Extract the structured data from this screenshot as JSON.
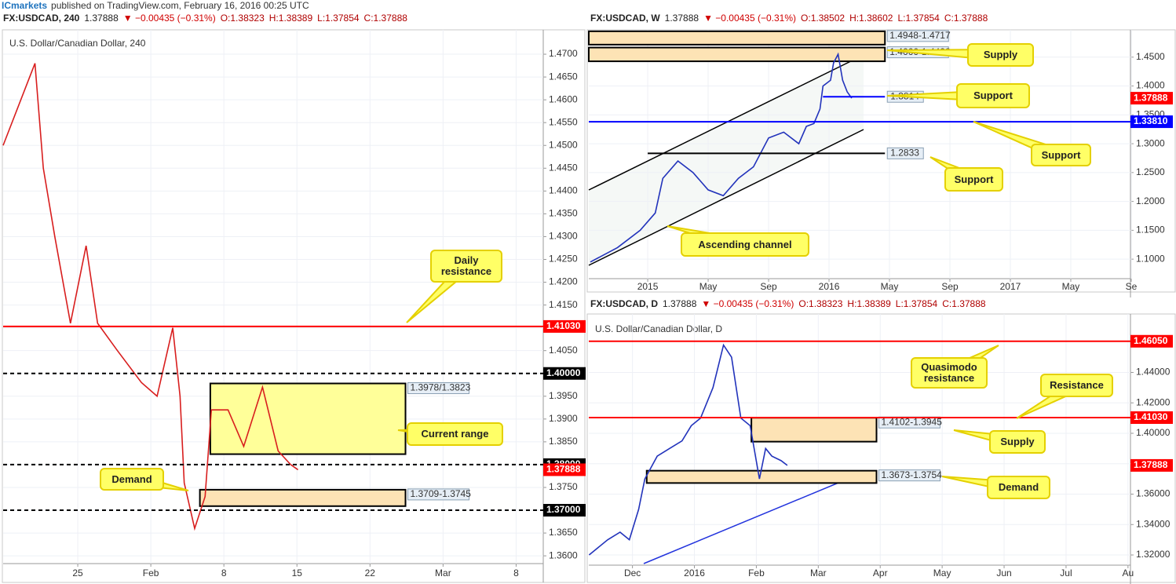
{
  "header": {
    "brand": "ICmarkets",
    "text": "published on TradingView.com, February 16, 2016 00:25 UTC"
  },
  "chart_data": [
    {
      "type": "line",
      "title": "U.S. Dollar/Canadian Dollar, 240",
      "info": {
        "symbol": "FX:USDCAD, 240",
        "price": "1.37888",
        "change": "▼ −0.00435 (−0.31%)",
        "open": "O:1.38323",
        "high": "H:1.38389",
        "low": "L:1.37854",
        "close": "C:1.37888"
      },
      "x": [
        -0.15,
        2.9,
        3.7,
        4.8,
        6.3,
        7.8,
        8.9,
        10.8,
        13.1,
        14.6,
        16.1,
        16.8,
        17.2,
        18.2,
        19.2,
        19.8,
        21.4,
        22.9,
        24.7,
        26.2,
        27.4,
        28.1
      ],
      "values": [
        1.45,
        1.468,
        1.445,
        1.43,
        1.411,
        1.428,
        1.411,
        1.405,
        1.398,
        1.395,
        1.41,
        1.395,
        1.376,
        1.366,
        1.373,
        1.392,
        1.392,
        1.384,
        1.397,
        1.383,
        1.38,
        1.37888
      ],
      "color": "#d81e1e",
      "grid": true,
      "xlim": [
        -0.15,
        51.6
      ],
      "ylim": [
        1.3583,
        1.475
      ],
      "xticks": [
        {
          "value": 7,
          "label": "25"
        },
        {
          "value": 14,
          "label": "Feb"
        },
        {
          "value": 21,
          "label": "8"
        },
        {
          "value": 28,
          "label": "15"
        },
        {
          "value": 35,
          "label": "22"
        },
        {
          "value": 42,
          "label": "Mar"
        },
        {
          "value": 49,
          "label": "8"
        }
      ],
      "yticks": [
        {
          "value": 1.36,
          "label": "1.3600"
        },
        {
          "value": 1.365,
          "label": "1.3650"
        },
        {
          "value": 1.37,
          "label": "1.3700"
        },
        {
          "value": 1.375,
          "label": "1.3750"
        },
        {
          "value": 1.38,
          "label": "1.3800"
        },
        {
          "value": 1.385,
          "label": "1.3850"
        },
        {
          "value": 1.39,
          "label": "1.3900"
        },
        {
          "value": 1.395,
          "label": "1.3950"
        },
        {
          "value": 1.4,
          "label": "1.4000"
        },
        {
          "value": 1.405,
          "label": "1.4050"
        },
        {
          "value": 1.41,
          "label": "1.4100"
        },
        {
          "value": 1.415,
          "label": "1.4150"
        },
        {
          "value": 1.42,
          "label": "1.4200"
        },
        {
          "value": 1.425,
          "label": "1.4250"
        },
        {
          "value": 1.43,
          "label": "1.4300"
        },
        {
          "value": 1.435,
          "label": "1.4350"
        },
        {
          "value": 1.44,
          "label": "1.4400"
        },
        {
          "value": 1.445,
          "label": "1.4450"
        },
        {
          "value": 1.45,
          "label": "1.4500"
        },
        {
          "value": 1.455,
          "label": "1.4550"
        },
        {
          "value": 1.46,
          "label": "1.4600"
        },
        {
          "value": 1.465,
          "label": "1.4650"
        },
        {
          "value": 1.47,
          "label": "1.4700"
        }
      ],
      "zones": [
        {
          "low": 1.3823,
          "high": 1.3978,
          "label": "1.3978/1.3823",
          "x_from": 19.7,
          "x_to": 38.4,
          "color": "#ffff99"
        },
        {
          "low": 1.3709,
          "high": 1.3745,
          "label": "1.3709-1.3745",
          "x_from": 18.7,
          "x_to": 38.4,
          "color": "#fde3b5"
        }
      ],
      "levels": [
        {
          "value": 1.4103,
          "label": "1.41030",
          "color": "#ff0000",
          "dash": false,
          "line": true,
          "label_pos": "axis"
        },
        {
          "value": 1.4,
          "label": "1.40000",
          "color": "#000000",
          "dash": true,
          "line": true,
          "label_pos": "axis"
        },
        {
          "value": 1.38,
          "label": "1.38000",
          "color": "#000000",
          "dash": true,
          "line": true,
          "label_pos": "axis"
        },
        {
          "value": 1.37,
          "label": "1.37000",
          "color": "#000000",
          "dash": true,
          "line": true,
          "label_pos": "axis"
        },
        {
          "value": 1.37888,
          "label": "1.37888",
          "color": "#ff0000",
          "dash": false,
          "line": false,
          "label_pos": "axis"
        }
      ],
      "annotations": [
        "Daily resistance",
        "Current range",
        "Demand"
      ]
    },
    {
      "type": "line",
      "info": {
        "symbol": "FX:USDCAD, W",
        "price": "1.37888",
        "change": "▼ −0.00435 (−0.31%)",
        "open": "O:1.38502",
        "high": "H:1.38602",
        "low": "L:1.37854",
        "close": "C:1.37888"
      },
      "x": [
        8.2,
        10,
        11.5,
        12.5,
        13,
        14,
        15,
        16,
        17,
        18,
        19,
        20,
        21,
        22,
        22.5,
        23,
        23.4,
        23.6,
        24.1,
        24.3,
        24.6,
        24.9,
        25.2,
        25.5
      ],
      "values": [
        1.095,
        1.12,
        1.15,
        1.18,
        1.24,
        1.27,
        1.25,
        1.22,
        1.21,
        1.24,
        1.26,
        1.31,
        1.32,
        1.3,
        1.33,
        1.335,
        1.36,
        1.4,
        1.41,
        1.44,
        1.455,
        1.41,
        1.39,
        1.37888
      ],
      "color": "#2233bb",
      "grid": true,
      "xlim": [
        8.1,
        43.95
      ],
      "ylim": [
        1.0662,
        1.4946
      ],
      "xticks": [
        {
          "value": 12,
          "label": "2015"
        },
        {
          "value": 16,
          "label": "May"
        },
        {
          "value": 20,
          "label": "Sep"
        },
        {
          "value": 24,
          "label": "2016"
        },
        {
          "value": 28,
          "label": "May"
        },
        {
          "value": 32,
          "label": "Sep"
        },
        {
          "value": 36,
          "label": "2017"
        },
        {
          "value": 40,
          "label": "May"
        },
        {
          "value": 44,
          "label": "Se"
        }
      ],
      "yticks": [
        {
          "value": 1.1,
          "label": "1.1000"
        },
        {
          "value": 1.15,
          "label": "1.1500"
        },
        {
          "value": 1.2,
          "label": "1.2000"
        },
        {
          "value": 1.25,
          "label": "1.2500"
        },
        {
          "value": 1.3,
          "label": "1.3000"
        },
        {
          "value": 1.35,
          "label": "1.3500"
        },
        {
          "value": 1.4,
          "label": "1.4000"
        },
        {
          "value": 1.45,
          "label": "1.4500"
        }
      ],
      "zones": [
        {
          "low": 1.4717,
          "high": 1.4948,
          "label": "1.4948-1.4717",
          "x_from": 8.1,
          "x_to": 27.7,
          "color": "#fde3b5"
        },
        {
          "low": 1.4428,
          "high": 1.4666,
          "label": "1.4666-1.4428",
          "x_from": 8.1,
          "x_to": 27.7,
          "color": "#fde3b5"
        }
      ],
      "levels": [
        {
          "value": 1.3814,
          "label": "1.3814",
          "color": "#0000ff",
          "dash": false,
          "line": true,
          "label_pos": "inside",
          "x_from": 23.6,
          "x_to": 27.7
        },
        {
          "value": 1.2833,
          "label": "1.2833",
          "color": "#000000",
          "dash": false,
          "line": true,
          "label_pos": "inside",
          "x_from": 12,
          "x_to": 27.7
        },
        {
          "value": 1.3381,
          "label": "1.33810",
          "color": "#0000ff",
          "dash": false,
          "line": true,
          "label_pos": "axis"
        },
        {
          "value": 1.37888,
          "label": "1.37888",
          "color": "#ff0000",
          "dash": false,
          "line": false,
          "label_pos": "axis"
        }
      ],
      "annotations": [
        "Supply",
        "Support",
        "Support",
        "Support",
        "Ascending channel"
      ]
    },
    {
      "type": "line",
      "title": "U.S. Dollar/Canadian Dollar, D",
      "info": {
        "symbol": "FX:USDCAD, D",
        "price": "1.37888",
        "change": "▼ −0.00435 (−0.31%)",
        "open": "O:1.38323",
        "high": "H:1.38389",
        "low": "L:1.37854",
        "close": "C:1.37888"
      },
      "x": [
        0.3,
        0.6,
        0.8,
        0.95,
        1.1,
        1.2,
        1.4,
        1.6,
        1.8,
        1.95,
        2.1,
        2.3,
        2.47,
        2.6,
        2.75,
        2.9,
        3.05,
        3.15,
        3.25,
        3.4,
        3.5
      ],
      "values": [
        1.32,
        1.33,
        1.335,
        1.33,
        1.35,
        1.37,
        1.385,
        1.39,
        1.395,
        1.405,
        1.41,
        1.43,
        1.458,
        1.45,
        1.41,
        1.405,
        1.37,
        1.39,
        1.385,
        1.382,
        1.37888
      ],
      "color": "#2233bb",
      "grid": true,
      "xlim": [
        0.295,
        9.04
      ],
      "ylim": [
        1.3133,
        1.4774
      ],
      "xticks": [
        {
          "value": 1,
          "label": "Dec"
        },
        {
          "value": 2,
          "label": "2016"
        },
        {
          "value": 3,
          "label": "Feb"
        },
        {
          "value": 4,
          "label": "Mar"
        },
        {
          "value": 5,
          "label": "Apr"
        },
        {
          "value": 6,
          "label": "May"
        },
        {
          "value": 7,
          "label": "Jun"
        },
        {
          "value": 8,
          "label": "Jul"
        },
        {
          "value": 9,
          "label": "Au"
        }
      ],
      "yticks": [
        {
          "value": 1.32,
          "label": "1.32000"
        },
        {
          "value": 1.34,
          "label": "1.34000"
        },
        {
          "value": 1.36,
          "label": "1.36000"
        },
        {
          "value": 1.38,
          "label": "1.38000"
        },
        {
          "value": 1.4,
          "label": "1.40000"
        },
        {
          "value": 1.42,
          "label": "1.42000"
        },
        {
          "value": 1.44,
          "label": "1.44000"
        }
      ],
      "zones": [
        {
          "low": 1.3945,
          "high": 1.4102,
          "label": "1.4102-1.3945",
          "x_from": 2.92,
          "x_to": 4.94,
          "color": "#fde3b5"
        },
        {
          "low": 1.3673,
          "high": 1.3754,
          "label": "1.3673-1.3754",
          "x_from": 1.23,
          "x_to": 4.94,
          "color": "#fde3b5"
        }
      ],
      "levels": [
        {
          "value": 1.4605,
          "label": "1.46050",
          "color": "#ff0000",
          "dash": false,
          "line": true,
          "label_pos": "axis"
        },
        {
          "value": 1.4103,
          "label": "1.41030",
          "color": "#ff0000",
          "dash": false,
          "line": true,
          "label_pos": "axis"
        },
        {
          "value": 1.37888,
          "label": "1.37888",
          "color": "#ff0000",
          "dash": false,
          "line": false,
          "label_pos": "axis"
        }
      ],
      "annotations": [
        "Quasimodo resistance",
        "Resistance",
        "Supply",
        "Demand"
      ]
    }
  ]
}
